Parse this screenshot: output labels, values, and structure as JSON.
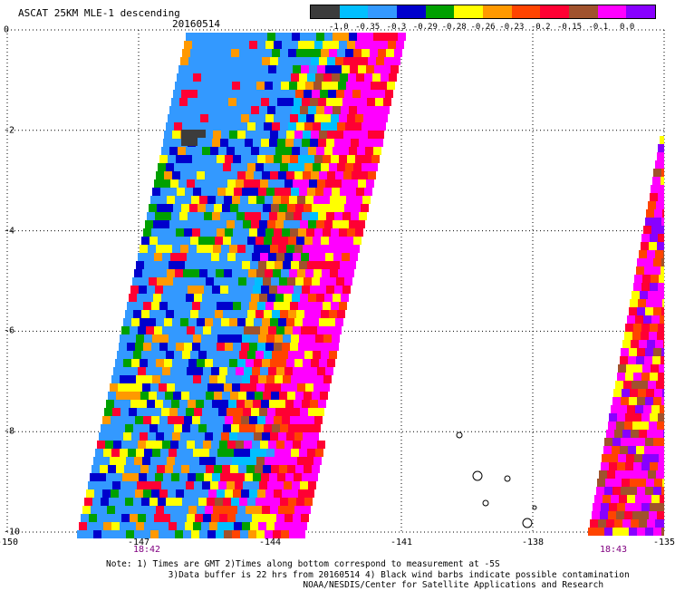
{
  "header": {
    "title": "ASCAT 25KM MLE-1 descending",
    "date": "20160514"
  },
  "colorbar": {
    "colors": [
      "#3c3c3c",
      "#00bfff",
      "#3399ff",
      "#0000cc",
      "#00a000",
      "#ffff00",
      "#ff9900",
      "#ff4400",
      "#ff0033",
      "#a0522d",
      "#ff00ff",
      "#8800ff"
    ],
    "labels": [
      "-1.0",
      "-0.35",
      "-0.3",
      "-0.29",
      "-0.28",
      "-0.26",
      "-0.23",
      "-0.2",
      "-0.15",
      "-0.1",
      "0.0"
    ]
  },
  "axes": {
    "y_labels": [
      "0",
      "-2",
      "-4",
      "-6",
      "-8",
      "-10"
    ],
    "x_labels": [
      "-150",
      "-147",
      "-144",
      "-141",
      "-138",
      "-135"
    ],
    "time_labels": [
      "18:42",
      "18:43"
    ]
  },
  "notes": {
    "line1": "Note: 1) Times are GMT 2)Times along bottom correspond to measurement at -5S",
    "line2": "3)Data buffer is 22 hrs from 20160514 4) Black wind barbs indicate possible contamination",
    "line3": "NOAA/NESDIS/Center for Satellite Applications and Research"
  }
}
